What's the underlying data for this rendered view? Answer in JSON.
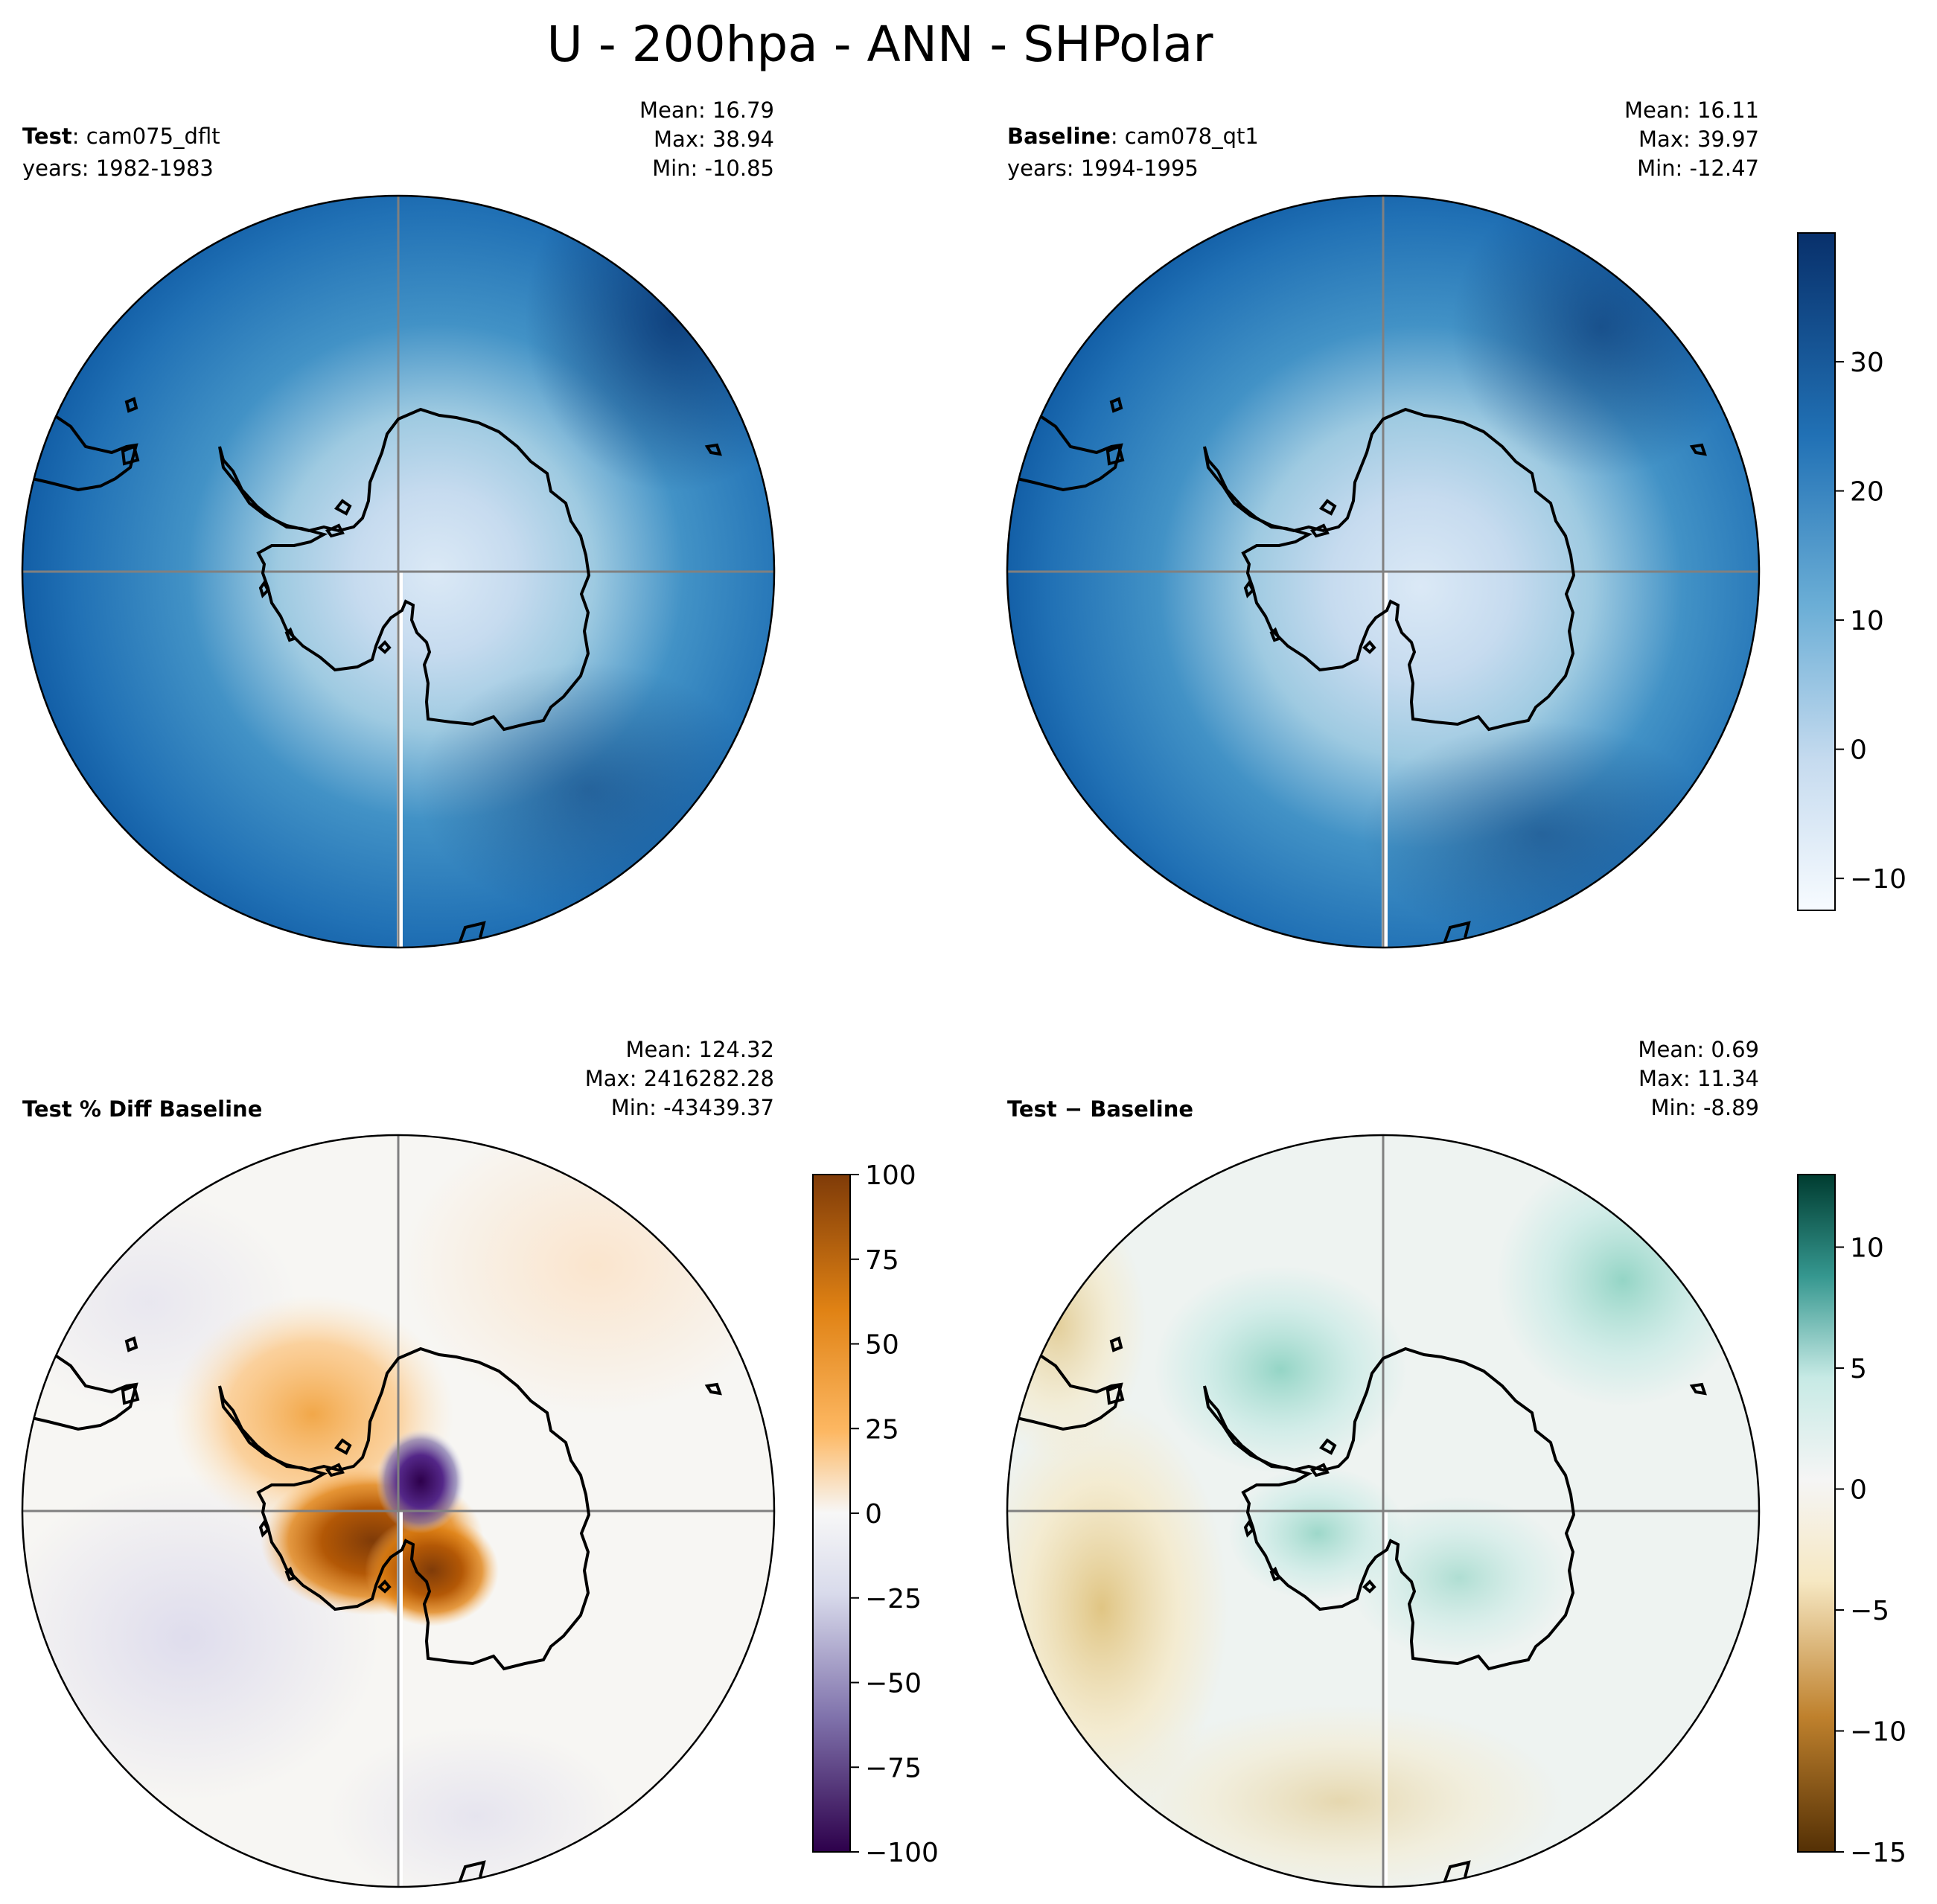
{
  "title": "U - 200hpa - ANN - SHPolar",
  "panels": [
    {
      "id": "test",
      "label_bold": "Test",
      "label_rest": ": cam075_dflt",
      "years": "years: 1982-1983",
      "stats": [
        "Mean: 16.79",
        "Max: 38.94",
        "Min: -10.85"
      ],
      "colormap": "Blues"
    },
    {
      "id": "baseline",
      "label_bold": "Baseline",
      "label_rest": ": cam078_qt1",
      "years": "years: 1994-1995",
      "stats": [
        "Mean: 16.11",
        "Max: 39.97",
        "Min: -12.47"
      ],
      "colormap": "Blues"
    },
    {
      "id": "pctdiff",
      "label_bold": "Test % Diff Baseline",
      "label_rest": "",
      "years": "",
      "stats": [
        "Mean: 124.32",
        "Max: 2416282.28",
        "Min: -43439.37"
      ],
      "colormap": "PuOr"
    },
    {
      "id": "diff",
      "label_bold": "Test − Baseline",
      "label_rest": "",
      "years": "",
      "stats": [
        "Mean:  0.69",
        "Max: 11.34",
        "Min: -8.89"
      ],
      "colormap": "BrBG"
    }
  ],
  "colorbars": [
    {
      "id": "cb-top",
      "range": [
        -12.47,
        39.97
      ],
      "ticks": [
        -10,
        0,
        10,
        20,
        30
      ],
      "labels": [
        "−10",
        "0",
        "10",
        "20",
        "30"
      ],
      "colors": [
        "#f7fbff",
        "#c6dbef",
        "#6baed6",
        "#2171b5",
        "#08306b"
      ]
    },
    {
      "id": "cb-pct",
      "range": [
        -100,
        100
      ],
      "ticks": [
        -100,
        -75,
        -50,
        -25,
        0,
        25,
        50,
        75,
        100
      ],
      "labels": [
        "−100",
        "−75",
        "−50",
        "−25",
        "0",
        "25",
        "50",
        "75",
        "100"
      ],
      "colors": [
        "#2d004b",
        "#8073ac",
        "#d8daeb",
        "#f7f7f7",
        "#fdb863",
        "#e08214",
        "#7f3b08"
      ]
    },
    {
      "id": "cb-diff",
      "range": [
        -15,
        13
      ],
      "ticks": [
        -15,
        -10,
        -5,
        0,
        5,
        10
      ],
      "labels": [
        "−15",
        "−10",
        "−5",
        "0",
        "5",
        "10"
      ],
      "colors": [
        "#543005",
        "#bf812d",
        "#f6e8c3",
        "#f5f5f5",
        "#c7eae5",
        "#35978f",
        "#003c30"
      ]
    }
  ],
  "chart_data": [
    {
      "type": "heatmap",
      "projection": "south polar stereographic",
      "variable": "U",
      "level_hpa": 200,
      "season": "ANN",
      "panels": [
        "Test",
        "Baseline",
        "Test % Diff Baseline",
        "Test − Baseline"
      ],
      "test": {
        "case": "cam075_dflt",
        "years": "1982-1983",
        "mean": 16.79,
        "max": 38.94,
        "min": -10.85
      },
      "baseline": {
        "case": "cam078_qt1",
        "years": "1994-1995",
        "mean": 16.11,
        "max": 39.97,
        "min": -12.47
      },
      "pct_diff": {
        "mean": 124.32,
        "max": 2416282.28,
        "min": -43439.37,
        "clim": [
          -100,
          100
        ]
      },
      "diff": {
        "mean": 0.69,
        "max": 11.34,
        "min": -8.89,
        "clim": [
          -15,
          13
        ]
      },
      "shared_clim": [
        -12.47,
        39.97
      ],
      "grid": true
    }
  ]
}
